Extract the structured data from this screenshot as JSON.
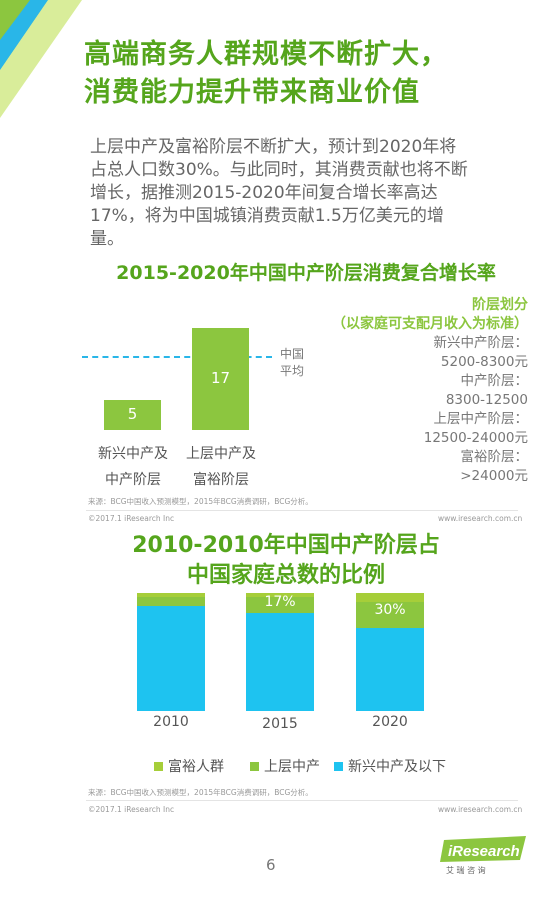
{
  "header": {
    "title_line1": "高端商务人群规模不断扩大，",
    "title_line2": "消费能力提升带来商业价值",
    "intro_lines": [
      "上层中产及富裕阶层不断扩大，预计到2020年将",
      "占总人口数30%。与此同时，其消费贡献也将不断",
      "增长，据推测2015-2020年间复合增长率高达",
      "17%，将为中国城镇消费贡献1.5万亿美元的增",
      "量。"
    ]
  },
  "chart_data": [
    {
      "type": "bar",
      "title": "2015-2020年中国中产阶层消费复合增长率",
      "categories": [
        "新兴中产及中产阶层",
        "上层中产及富裕阶层"
      ],
      "category_lines": [
        [
          "新兴中产及",
          "中产阶层"
        ],
        [
          "上层中产及",
          "富裕阶层"
        ]
      ],
      "values": [
        5,
        17
      ],
      "value_labels": [
        "5",
        "17"
      ],
      "reference_line": {
        "label_lines": [
          "中国",
          "平均"
        ]
      },
      "ylim": [
        0,
        20
      ],
      "grid": false,
      "colors": {
        "bar": "#8cc63f",
        "reference": "#29b6e8"
      },
      "side_note": {
        "heading_lines": [
          "阶层划分",
          "（以家庭可支配月收入为标准）"
        ],
        "tiers": [
          {
            "name": "新兴中产阶层：",
            "range": "5200-8300元"
          },
          {
            "name": "中产阶层：",
            "range": "8300-12500"
          },
          {
            "name": "上层中产阶层：",
            "range": "12500-24000元"
          },
          {
            "name": "富裕阶层：",
            "range": ">24000元"
          }
        ]
      }
    },
    {
      "type": "bar",
      "stacked": true,
      "title_lines": [
        "2010-2010年中国中产阶层占",
        "中国家庭总数的比例"
      ],
      "categories": [
        "2010",
        "2015",
        "2020"
      ],
      "series": [
        {
          "name": "新兴中产及以下",
          "values": [
            89,
            83,
            70
          ],
          "color": "#1ec3f0"
        },
        {
          "name": "上层中产",
          "values": [
            8,
            14,
            22
          ],
          "color": "#8cc63f"
        },
        {
          "name": "富裕人群",
          "values": [
            3,
            3,
            8
          ],
          "color": "#a6ce39"
        }
      ],
      "combined_labels": [
        null,
        "17%",
        "30%"
      ],
      "ylim": [
        0,
        100
      ],
      "grid": false,
      "legend_position": "bottom"
    }
  ],
  "sources": {
    "chart1": "来源：BCG中国收入预测模型，2015年BCG消费调研，BCG分析。",
    "chart2": "来源：BCG中国收入预测模型，2015年BCG消费调研，BCG分析。"
  },
  "footer": {
    "copyright": "©2017.1 iResearch Inc",
    "url": "www.iresearch.com.cn",
    "page_number": "6",
    "logo_text": "iResearch",
    "logo_sub": "艾 瑞 咨 询"
  },
  "colors": {
    "accent": "#55a51c",
    "green": "#8cc63f",
    "blue": "#1ec3f0"
  }
}
